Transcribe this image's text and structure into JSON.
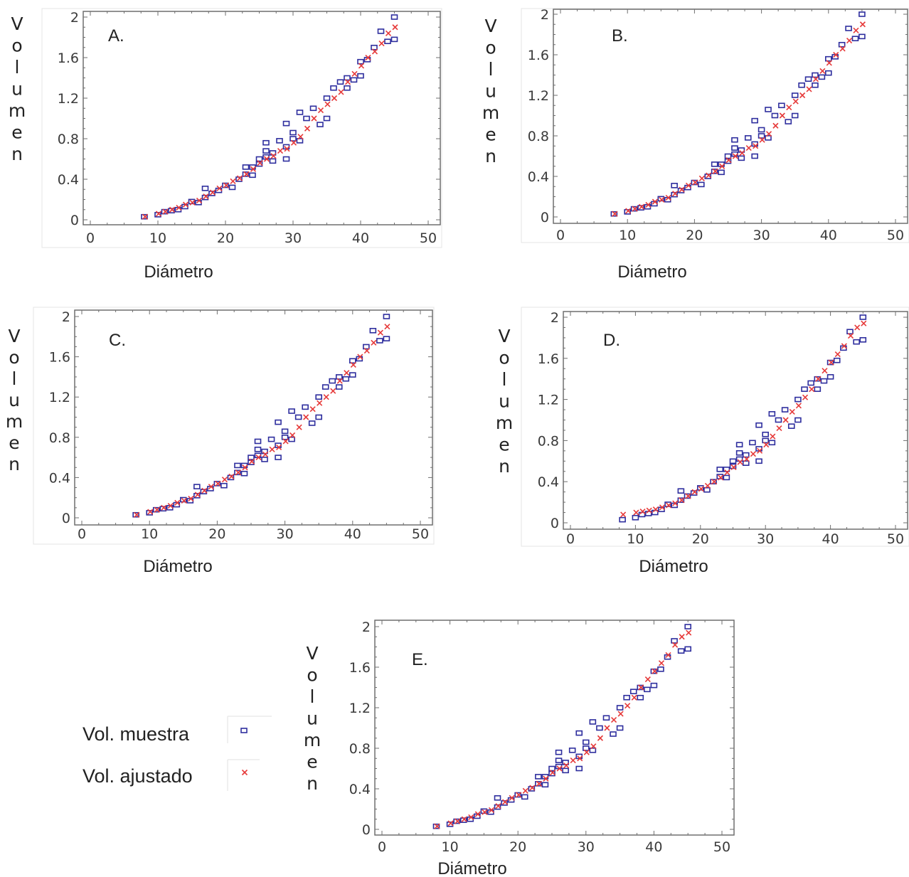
{
  "legend": {
    "items": [
      {
        "label": "Vol. muestra",
        "marker": "square",
        "color": "#2e2e9e"
      },
      {
        "label": "Vol. ajustado",
        "marker": "x",
        "color": "#e63a3a"
      }
    ]
  },
  "chart_data": [
    {
      "type": "scatter",
      "panel_label": "A.",
      "xlabel": "Diámetro",
      "ylabel": "Volumen",
      "xlim": [
        0,
        50
      ],
      "ylim": [
        0,
        2
      ],
      "xticks": [
        "0",
        "10",
        "20",
        "30",
        "40",
        "50"
      ],
      "yticks": [
        "0",
        "0.4",
        "0.8",
        "1.2",
        "1.6",
        "2"
      ],
      "series": [
        {
          "name": "Vol. muestra",
          "x": [
            8,
            10,
            11,
            12,
            13,
            14,
            15,
            16,
            17,
            17,
            18,
            19,
            20,
            21,
            22,
            23,
            23,
            24,
            24,
            25,
            25,
            26,
            26,
            26,
            27,
            27,
            28,
            29,
            29,
            29,
            30,
            30,
            31,
            31,
            32,
            33,
            34,
            35,
            35,
            36,
            37,
            38,
            38,
            39,
            40,
            40,
            41,
            42,
            43,
            44,
            45,
            45
          ],
          "y": [
            0.03,
            0.05,
            0.08,
            0.09,
            0.1,
            0.13,
            0.18,
            0.17,
            0.22,
            0.31,
            0.26,
            0.29,
            0.34,
            0.32,
            0.4,
            0.45,
            0.52,
            0.44,
            0.52,
            0.6,
            0.55,
            0.62,
            0.68,
            0.76,
            0.58,
            0.66,
            0.78,
            0.6,
            0.72,
            0.95,
            0.86,
            0.8,
            1.06,
            0.78,
            1.0,
            1.1,
            0.94,
            1.0,
            1.2,
            1.3,
            1.36,
            1.3,
            1.4,
            1.38,
            1.42,
            1.56,
            1.58,
            1.7,
            1.86,
            1.76,
            2.0,
            1.78
          ]
        },
        {
          "name": "Vol. ajustado",
          "x": [
            8,
            10,
            11,
            12,
            13,
            14,
            15,
            16,
            17,
            18,
            19,
            20,
            21,
            22,
            23,
            24,
            25,
            26,
            27,
            28,
            29,
            30,
            31,
            32,
            33,
            34,
            35,
            36,
            37,
            38,
            39,
            40,
            41,
            42,
            43,
            44,
            45
          ],
          "y": [
            0.03,
            0.06,
            0.08,
            0.1,
            0.12,
            0.15,
            0.17,
            0.19,
            0.23,
            0.27,
            0.31,
            0.34,
            0.38,
            0.41,
            0.45,
            0.5,
            0.56,
            0.6,
            0.63,
            0.68,
            0.7,
            0.76,
            0.82,
            0.9,
            1.0,
            1.08,
            1.14,
            1.2,
            1.26,
            1.36,
            1.44,
            1.52,
            1.6,
            1.66,
            1.74,
            1.84,
            1.9
          ]
        }
      ]
    },
    {
      "type": "scatter",
      "panel_label": "B.",
      "xlabel": "Diámetro",
      "ylabel": "Volumen",
      "xlim": [
        0,
        50
      ],
      "ylim": [
        0,
        2
      ],
      "xticks": [
        "0",
        "10",
        "20",
        "30",
        "40",
        "50"
      ],
      "yticks": [
        "0",
        "0.4",
        "0.8",
        "1.2",
        "1.6",
        "2"
      ],
      "series": [
        {
          "name": "Vol. muestra",
          "x": [
            8,
            10,
            11,
            12,
            13,
            14,
            15,
            16,
            17,
            17,
            18,
            19,
            20,
            21,
            22,
            23,
            23,
            24,
            24,
            25,
            25,
            26,
            26,
            26,
            27,
            27,
            28,
            29,
            29,
            29,
            30,
            30,
            31,
            31,
            32,
            33,
            34,
            35,
            35,
            36,
            37,
            38,
            38,
            39,
            40,
            40,
            41,
            42,
            43,
            44,
            45,
            45
          ],
          "y": [
            0.03,
            0.05,
            0.08,
            0.09,
            0.1,
            0.13,
            0.18,
            0.17,
            0.22,
            0.31,
            0.26,
            0.29,
            0.34,
            0.32,
            0.4,
            0.45,
            0.52,
            0.44,
            0.52,
            0.6,
            0.55,
            0.62,
            0.68,
            0.76,
            0.58,
            0.66,
            0.78,
            0.6,
            0.72,
            0.95,
            0.86,
            0.8,
            1.06,
            0.78,
            1.0,
            1.1,
            0.94,
            1.0,
            1.2,
            1.3,
            1.36,
            1.3,
            1.4,
            1.38,
            1.42,
            1.56,
            1.58,
            1.7,
            1.86,
            1.76,
            2.0,
            1.78
          ]
        },
        {
          "name": "Vol. ajustado",
          "x": [
            8,
            10,
            11,
            12,
            13,
            14,
            15,
            16,
            17,
            18,
            19,
            20,
            21,
            22,
            23,
            24,
            25,
            26,
            27,
            28,
            29,
            30,
            31,
            32,
            33,
            34,
            35,
            36,
            37,
            38,
            39,
            40,
            41,
            42,
            43,
            44,
            45
          ],
          "y": [
            0.03,
            0.06,
            0.08,
            0.1,
            0.12,
            0.15,
            0.17,
            0.19,
            0.23,
            0.27,
            0.31,
            0.34,
            0.38,
            0.41,
            0.45,
            0.5,
            0.56,
            0.6,
            0.63,
            0.68,
            0.7,
            0.76,
            0.82,
            0.9,
            1.0,
            1.08,
            1.14,
            1.2,
            1.26,
            1.36,
            1.44,
            1.52,
            1.6,
            1.66,
            1.74,
            1.84,
            1.9
          ]
        }
      ]
    },
    {
      "type": "scatter",
      "panel_label": "C.",
      "xlabel": "Diámetro",
      "ylabel": "Volumen",
      "xlim": [
        0,
        50
      ],
      "ylim": [
        0,
        2
      ],
      "xticks": [
        "0",
        "10",
        "20",
        "30",
        "40",
        "50"
      ],
      "yticks": [
        "0",
        "0.4",
        "0.8",
        "1.2",
        "1.6",
        "2"
      ],
      "series": [
        {
          "name": "Vol. muestra",
          "x": [
            8,
            10,
            11,
            12,
            13,
            14,
            15,
            16,
            17,
            17,
            18,
            19,
            20,
            21,
            22,
            23,
            23,
            24,
            24,
            25,
            25,
            26,
            26,
            26,
            27,
            27,
            28,
            29,
            29,
            29,
            30,
            30,
            31,
            31,
            32,
            33,
            34,
            35,
            35,
            36,
            37,
            38,
            38,
            39,
            40,
            40,
            41,
            42,
            43,
            44,
            45,
            45
          ],
          "y": [
            0.03,
            0.05,
            0.08,
            0.09,
            0.1,
            0.13,
            0.18,
            0.17,
            0.22,
            0.31,
            0.26,
            0.29,
            0.34,
            0.32,
            0.4,
            0.45,
            0.52,
            0.44,
            0.52,
            0.6,
            0.55,
            0.62,
            0.68,
            0.76,
            0.58,
            0.66,
            0.78,
            0.6,
            0.72,
            0.95,
            0.86,
            0.8,
            1.06,
            0.78,
            1.0,
            1.1,
            0.94,
            1.0,
            1.2,
            1.3,
            1.36,
            1.3,
            1.4,
            1.38,
            1.42,
            1.56,
            1.58,
            1.7,
            1.86,
            1.76,
            2.0,
            1.78
          ]
        },
        {
          "name": "Vol. ajustado",
          "x": [
            8,
            10,
            11,
            12,
            13,
            14,
            15,
            16,
            17,
            18,
            19,
            20,
            21,
            22,
            23,
            24,
            25,
            26,
            27,
            28,
            29,
            30,
            31,
            32,
            33,
            34,
            35,
            36,
            37,
            38,
            39,
            40,
            41,
            42,
            43,
            44,
            45
          ],
          "y": [
            0.03,
            0.06,
            0.08,
            0.1,
            0.12,
            0.15,
            0.17,
            0.19,
            0.23,
            0.27,
            0.31,
            0.34,
            0.38,
            0.41,
            0.45,
            0.5,
            0.56,
            0.6,
            0.63,
            0.68,
            0.7,
            0.76,
            0.82,
            0.9,
            1.0,
            1.08,
            1.14,
            1.2,
            1.26,
            1.36,
            1.44,
            1.52,
            1.6,
            1.66,
            1.74,
            1.84,
            1.9
          ]
        }
      ]
    },
    {
      "type": "scatter",
      "panel_label": "D.",
      "xlabel": "Diámetro",
      "ylabel": "Volumen",
      "xlim": [
        0,
        50
      ],
      "ylim": [
        0,
        2
      ],
      "xticks": [
        "0",
        "10",
        "20",
        "30",
        "40",
        "50"
      ],
      "yticks": [
        "0",
        "0.4",
        "0.8",
        "1.2",
        "1.6",
        "2"
      ],
      "series": [
        {
          "name": "Vol. muestra",
          "x": [
            8,
            10,
            11,
            12,
            13,
            14,
            15,
            16,
            17,
            17,
            18,
            19,
            20,
            21,
            22,
            23,
            23,
            24,
            24,
            25,
            25,
            26,
            26,
            26,
            27,
            27,
            28,
            29,
            29,
            29,
            30,
            30,
            31,
            31,
            32,
            33,
            34,
            35,
            35,
            36,
            37,
            38,
            38,
            39,
            40,
            40,
            41,
            42,
            43,
            44,
            45,
            45
          ],
          "y": [
            0.03,
            0.05,
            0.08,
            0.09,
            0.1,
            0.13,
            0.18,
            0.17,
            0.22,
            0.31,
            0.26,
            0.29,
            0.34,
            0.32,
            0.4,
            0.45,
            0.52,
            0.44,
            0.52,
            0.6,
            0.55,
            0.62,
            0.68,
            0.76,
            0.58,
            0.66,
            0.78,
            0.6,
            0.72,
            0.95,
            0.86,
            0.8,
            1.06,
            0.78,
            1.0,
            1.1,
            0.94,
            1.0,
            1.2,
            1.3,
            1.36,
            1.3,
            1.4,
            1.38,
            1.42,
            1.56,
            1.58,
            1.7,
            1.86,
            1.76,
            2.0,
            1.78
          ]
        },
        {
          "name": "Vol. ajustado",
          "x": [
            8,
            10,
            11,
            12,
            13,
            14,
            15,
            16,
            17,
            18,
            19,
            20,
            21,
            22,
            23,
            24,
            25,
            26,
            27,
            28,
            29,
            30,
            31,
            32,
            33,
            34,
            35,
            36,
            37,
            38,
            39,
            40,
            41,
            42,
            43,
            44,
            45
          ],
          "y": [
            0.08,
            0.1,
            0.11,
            0.12,
            0.13,
            0.15,
            0.17,
            0.19,
            0.22,
            0.26,
            0.3,
            0.33,
            0.36,
            0.4,
            0.44,
            0.49,
            0.54,
            0.59,
            0.62,
            0.67,
            0.7,
            0.76,
            0.84,
            0.92,
            1.0,
            1.08,
            1.14,
            1.22,
            1.3,
            1.4,
            1.48,
            1.56,
            1.64,
            1.72,
            1.82,
            1.9,
            1.94
          ]
        }
      ]
    },
    {
      "type": "scatter",
      "panel_label": "E.",
      "xlabel": "Diámetro",
      "ylabel": "Volumen",
      "xlim": [
        0,
        50
      ],
      "ylim": [
        0,
        2
      ],
      "xticks": [
        "0",
        "10",
        "20",
        "30",
        "40",
        "50"
      ],
      "yticks": [
        "0",
        "0.4",
        "0.8",
        "1.2",
        "1.6",
        "2"
      ],
      "series": [
        {
          "name": "Vol. muestra",
          "x": [
            8,
            10,
            11,
            12,
            13,
            14,
            15,
            16,
            17,
            17,
            18,
            19,
            20,
            21,
            22,
            23,
            23,
            24,
            24,
            25,
            25,
            26,
            26,
            26,
            27,
            27,
            28,
            29,
            29,
            29,
            30,
            30,
            31,
            31,
            32,
            33,
            34,
            35,
            35,
            36,
            37,
            38,
            38,
            39,
            40,
            40,
            41,
            42,
            43,
            44,
            45,
            45
          ],
          "y": [
            0.03,
            0.05,
            0.08,
            0.09,
            0.1,
            0.13,
            0.18,
            0.17,
            0.22,
            0.31,
            0.26,
            0.29,
            0.34,
            0.32,
            0.4,
            0.45,
            0.52,
            0.44,
            0.52,
            0.6,
            0.55,
            0.62,
            0.68,
            0.76,
            0.58,
            0.66,
            0.78,
            0.6,
            0.72,
            0.95,
            0.86,
            0.8,
            1.06,
            0.78,
            1.0,
            1.1,
            0.94,
            1.0,
            1.2,
            1.3,
            1.36,
            1.3,
            1.4,
            1.38,
            1.42,
            1.56,
            1.58,
            1.7,
            1.86,
            1.76,
            2.0,
            1.78
          ]
        },
        {
          "name": "Vol. ajustado",
          "x": [
            8,
            10,
            11,
            12,
            13,
            14,
            15,
            16,
            17,
            18,
            19,
            20,
            21,
            22,
            23,
            24,
            25,
            26,
            27,
            28,
            29,
            30,
            31,
            32,
            33,
            34,
            35,
            36,
            37,
            38,
            39,
            40,
            41,
            42,
            43,
            44,
            45
          ],
          "y": [
            0.03,
            0.06,
            0.08,
            0.1,
            0.12,
            0.15,
            0.17,
            0.19,
            0.23,
            0.27,
            0.31,
            0.34,
            0.38,
            0.41,
            0.45,
            0.5,
            0.56,
            0.6,
            0.63,
            0.68,
            0.7,
            0.76,
            0.82,
            0.9,
            1.0,
            1.08,
            1.14,
            1.22,
            1.3,
            1.4,
            1.48,
            1.56,
            1.64,
            1.72,
            1.82,
            1.9,
            1.94
          ]
        }
      ]
    }
  ]
}
